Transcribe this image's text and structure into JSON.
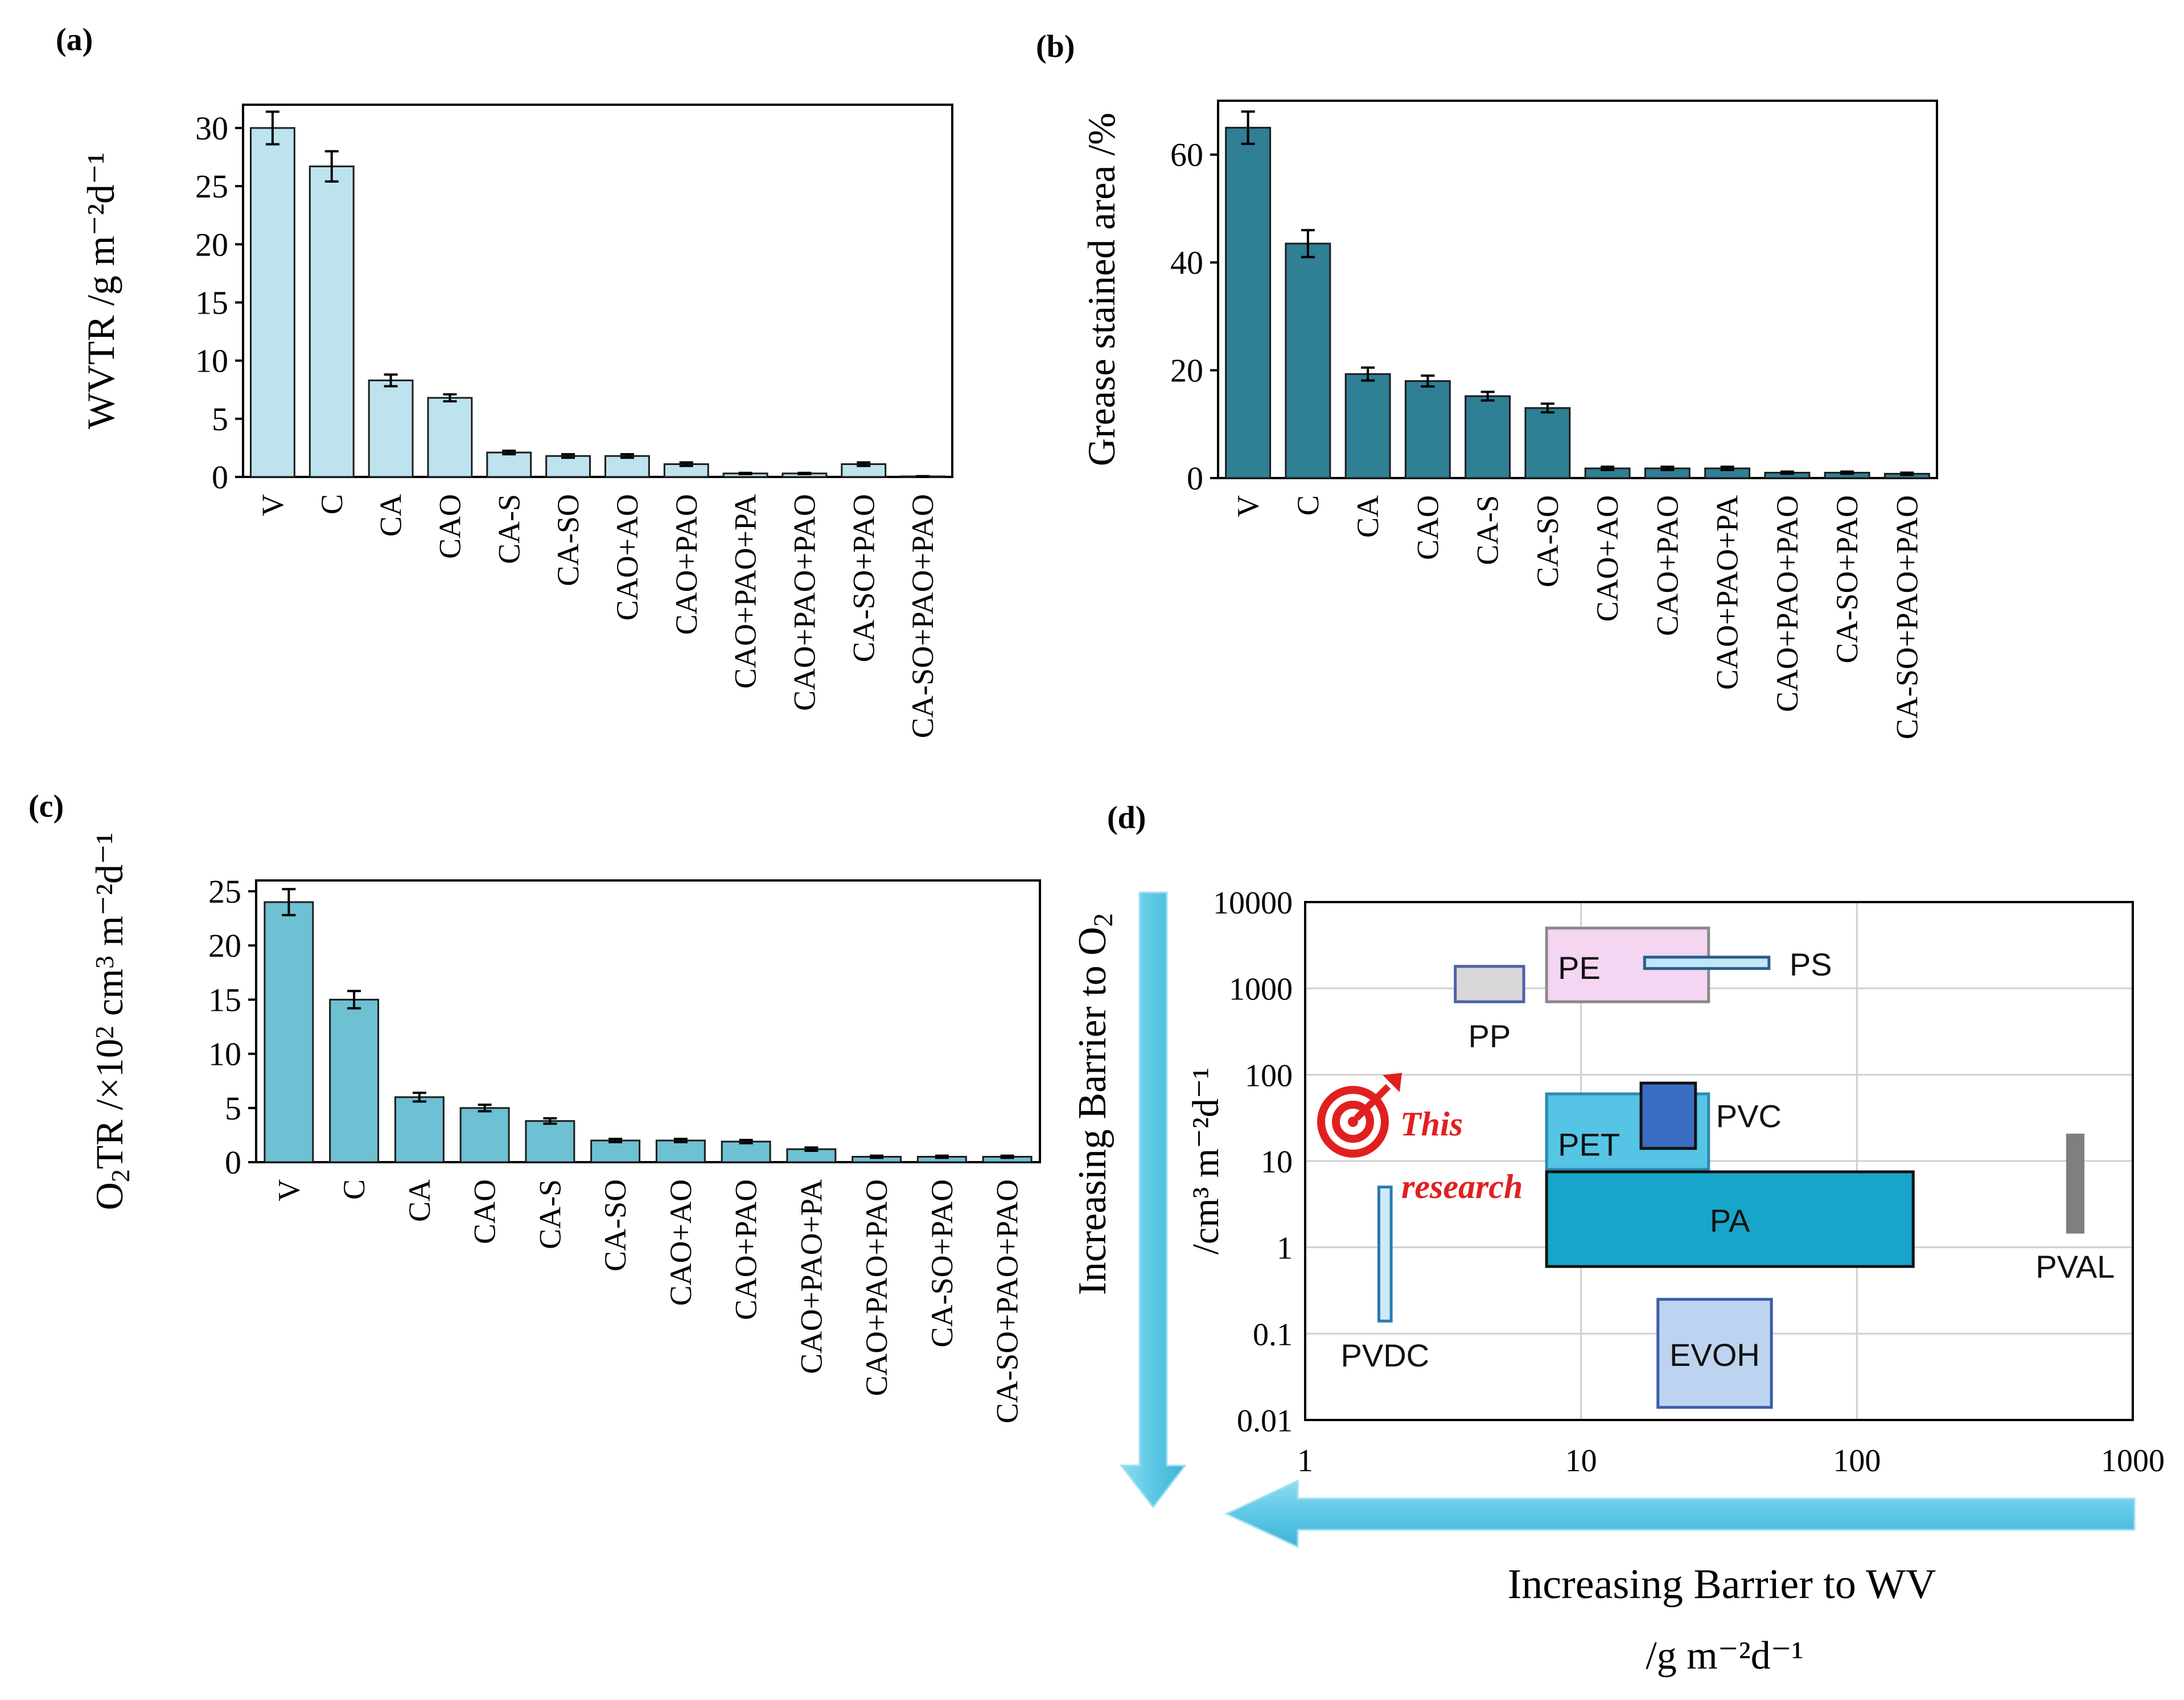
{
  "figure": {
    "panel_labels": [
      "(a)",
      "(b)",
      "(c)",
      "(d)"
    ]
  },
  "colors": {
    "bar_a": "#bde3ef",
    "bar_b": "#2f7f95",
    "bar_c": "#6ec0d3",
    "arrow": "#5cc8e6",
    "pp": "#d8d8d8",
    "pe": "#f4d5f2",
    "ps": "#bfe7f7",
    "pet": "#56c4e4",
    "pvc": "#3b6cc4",
    "pa": "#17a6c9",
    "evoh": "#bcd4ef",
    "pvdc": "#cfeaf7",
    "pval": "#7f7f7f",
    "target": "#e02020"
  },
  "chart_data": [
    {
      "id": "a",
      "type": "bar",
      "categories": [
        "V",
        "C",
        "CA",
        "CAO",
        "CA-S",
        "CA-SO",
        "CAO+AO",
        "CAO+PAO",
        "CAO+PAO+PA",
        "CAO+PAO+PAO",
        "CA-SO+PAO",
        "CA-SO+PAO+PAO"
      ],
      "values": [
        30.0,
        26.7,
        8.3,
        6.8,
        2.1,
        1.8,
        1.8,
        1.1,
        0.3,
        0.3,
        1.1,
        0.05
      ],
      "errors": [
        1.4,
        1.3,
        0.5,
        0.3,
        0.15,
        0.15,
        0.15,
        0.15,
        0.05,
        0.05,
        0.15,
        0.02
      ],
      "ylabel": "WVTR /g m⁻²d⁻¹",
      "ylim": [
        0,
        32
      ],
      "yticks": [
        0,
        5,
        10,
        15,
        20,
        25,
        30
      ],
      "ytick_labels": [
        "0",
        "5",
        "10",
        "15",
        "20",
        "25",
        "30"
      ]
    },
    {
      "id": "b",
      "type": "bar",
      "categories": [
        "V",
        "C",
        "CA",
        "CAO",
        "CA-S",
        "CA-SO",
        "CAO+AO",
        "CAO+PAO",
        "CAO+PAO+PA",
        "CAO+PAO+PAO",
        "CA-SO+PAO",
        "CA-SO+PAO+PAO"
      ],
      "values": [
        65,
        43.5,
        19.3,
        18,
        15.2,
        13,
        1.8,
        1.8,
        1.8,
        1.0,
        1.0,
        0.8
      ],
      "errors": [
        3.0,
        2.5,
        1.2,
        1.0,
        0.8,
        0.8,
        0.3,
        0.3,
        0.3,
        0.2,
        0.2,
        0.2
      ],
      "ylabel": "Grease stained area /%",
      "ylim": [
        0,
        70
      ],
      "yticks": [
        0,
        20,
        40,
        60
      ],
      "ytick_labels": [
        "0",
        "20",
        "40",
        "60"
      ]
    },
    {
      "id": "c",
      "type": "bar",
      "categories": [
        "V",
        "C",
        "CA",
        "CAO",
        "CA-S",
        "CA-SO",
        "CAO+AO",
        "CAO+PAO",
        "CAO+PAO+PA",
        "CAO+PAO+PAO",
        "CA-SO+PAO",
        "CA-SO+PAO+PAO"
      ],
      "values": [
        24,
        15,
        6,
        5,
        3.8,
        2,
        2,
        1.9,
        1.2,
        0.5,
        0.5,
        0.5
      ],
      "errors": [
        1.2,
        0.8,
        0.4,
        0.3,
        0.25,
        0.15,
        0.15,
        0.15,
        0.15,
        0.1,
        0.1,
        0.1
      ],
      "ylabel_main": "O",
      "ylabel_sub": "2",
      "ylabel_rest": "TR /×10",
      "ylabel_sup": "2",
      "ylabel_tail": " cm",
      "ylabel_sup2": "3",
      "ylabel_end": " m⁻²d⁻¹",
      "ylim": [
        0,
        26
      ],
      "yticks": [
        0,
        5,
        10,
        15,
        20,
        25
      ],
      "ytick_labels": [
        "0",
        "5",
        "10",
        "15",
        "20",
        "25"
      ]
    },
    {
      "id": "d",
      "type": "scatter",
      "title": "",
      "x_scale": "log",
      "y_scale": "log",
      "xlim": [
        1,
        1000
      ],
      "ylim": [
        0.01,
        10000
      ],
      "xticks": [
        1,
        10,
        100,
        1000
      ],
      "xtick_labels": [
        "1",
        "10",
        "100",
        "1000"
      ],
      "yticks": [
        0.01,
        0.1,
        1,
        10,
        100,
        1000,
        10000
      ],
      "ytick_labels": [
        "0.01",
        "0.1",
        "1",
        "10",
        "100",
        "1000",
        "10000"
      ],
      "xlabel_line1": "Increasing Barrier to WV",
      "xlabel_line2": "/g m⁻²d⁻¹",
      "ylabel_line1": "Increasing Barrier to O",
      "ylabel_line1_sub": "2",
      "ylabel_line2": "/cm³ m⁻²d⁻¹",
      "annotation_line1": "This",
      "annotation_line2": "research",
      "regions": [
        {
          "name": "PP",
          "x": [
            3.5,
            6.2
          ],
          "y": [
            700,
            1800
          ],
          "fill": "pp",
          "stroke": "#4a62a8",
          "label_pos": "below"
        },
        {
          "name": "PE",
          "x": [
            7.5,
            29
          ],
          "y": [
            700,
            5000
          ],
          "fill": "pe",
          "stroke": "#8a8a8a",
          "label_pos": "inside-left"
        },
        {
          "name": "PS",
          "x": [
            17,
            48
          ],
          "y": [
            1700,
            2300
          ],
          "fill": "ps",
          "stroke": "#2b5c8a",
          "label_pos": "right"
        },
        {
          "name": "PET",
          "x": [
            7.5,
            29
          ],
          "y": [
            8,
            60
          ],
          "fill": "pet",
          "stroke": "#2b8ab0",
          "label_pos": "inside-left"
        },
        {
          "name": "PVC",
          "x": [
            16.5,
            26
          ],
          "y": [
            14,
            80
          ],
          "fill": "pvc",
          "stroke": "#111111",
          "label_pos": "right"
        },
        {
          "name": "PA",
          "x": [
            7.5,
            160
          ],
          "y": [
            0.6,
            7.5
          ],
          "fill": "pa",
          "stroke": "#111111",
          "label_pos": "center"
        },
        {
          "name": "EVOH",
          "x": [
            19,
            49
          ],
          "y": [
            0.014,
            0.25
          ],
          "fill": "evoh",
          "stroke": "#3a5ca8",
          "label_pos": "center"
        },
        {
          "name": "PVDC",
          "x": [
            1.85,
            2.05
          ],
          "y": [
            0.14,
            5
          ],
          "fill": "pvdc",
          "stroke": "#2b7ab0",
          "label_pos": "below"
        },
        {
          "name": "PVAL",
          "x": [
            580,
            660
          ],
          "y": [
            1.5,
            20
          ],
          "fill": "pval",
          "stroke": "#7f7f7f",
          "label_pos": "below"
        }
      ]
    }
  ]
}
